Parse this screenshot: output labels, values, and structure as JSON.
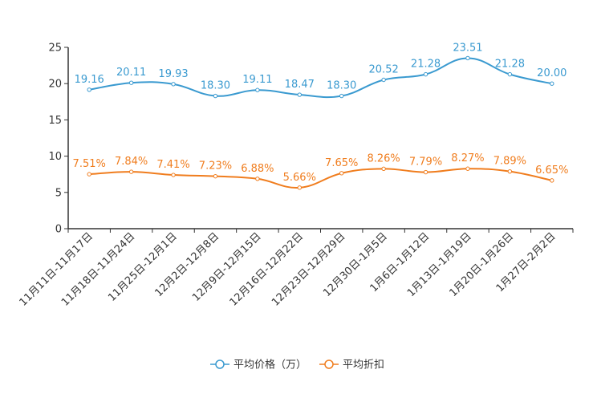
{
  "chart_data": {
    "type": "line",
    "title": "",
    "xlabel": "",
    "ylabel": "",
    "ylim": [
      0,
      25
    ],
    "yticks": [
      0,
      5,
      10,
      15,
      20,
      25
    ],
    "categories": [
      "11月11日-11月17日",
      "11月18日-11月24日",
      "11月25日-12月1日",
      "12月2日-12月8日",
      "12月9日-12月15日",
      "12月16日-12月22日",
      "12月23日-12月29日",
      "12月30日-1月5日",
      "1月6日-1月12日",
      "1月13日-1月19日",
      "1月20日-1月26日",
      "1月27日-2月2日"
    ],
    "series": [
      {
        "name": "平均价格（万）",
        "color": "#3a9ad0",
        "values": [
          19.16,
          20.11,
          19.93,
          18.3,
          19.11,
          18.47,
          18.3,
          20.52,
          21.28,
          23.51,
          21.28,
          20.0
        ],
        "labels": [
          "19.16",
          "20.11",
          "19.93",
          "18.30",
          "19.11",
          "18.47",
          "18.30",
          "20.52",
          "21.28",
          "23.51",
          "21.28",
          "20.00"
        ]
      },
      {
        "name": "平均折扣",
        "color": "#f07d1e",
        "values": [
          7.51,
          7.84,
          7.41,
          7.23,
          6.88,
          5.66,
          7.65,
          8.26,
          7.79,
          8.27,
          7.89,
          6.65
        ],
        "labels": [
          "7.51%",
          "7.84%",
          "7.41%",
          "7.23%",
          "6.88%",
          "5.66%",
          "7.65%",
          "8.26%",
          "7.79%",
          "8.27%",
          "7.89%",
          "6.65%"
        ]
      }
    ],
    "legend": "bottom-center",
    "grid": false
  }
}
